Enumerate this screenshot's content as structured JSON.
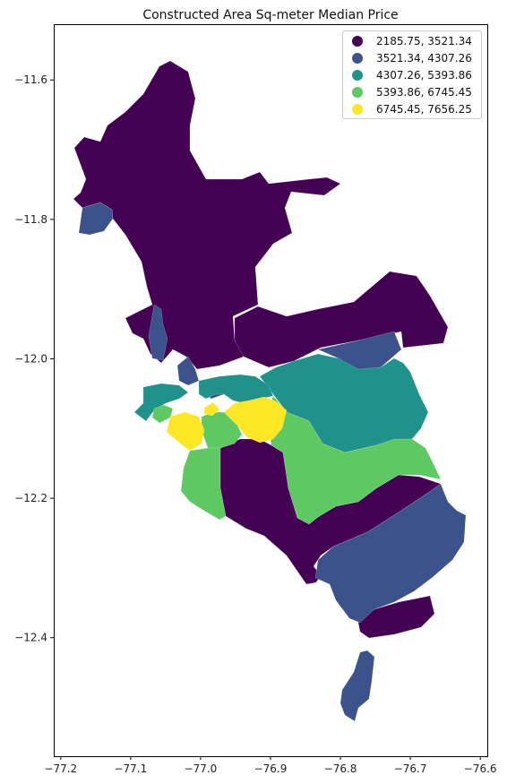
{
  "chart_data": {
    "type": "choropleth",
    "title": "Constructed Area Sq-meter Median Price",
    "xlabel": "",
    "ylabel": "",
    "xlim": [
      -77.21,
      -76.59
    ],
    "ylim": [
      -12.57,
      -11.52
    ],
    "x_ticks": [
      -77.2,
      -77.1,
      -77.0,
      -76.9,
      -76.8,
      -76.7,
      -76.6
    ],
    "x_tick_labels": [
      "−77.2",
      "−77.1",
      "−77.0",
      "−76.9",
      "−76.8",
      "−76.7",
      "−76.6"
    ],
    "y_ticks": [
      -11.6,
      -11.8,
      -12.0,
      -12.2,
      -12.4
    ],
    "y_tick_labels": [
      "−11.6",
      "−11.8",
      "−12.0",
      "−12.2",
      "−12.4"
    ],
    "grid": false,
    "legend": {
      "placement": "top-right",
      "entries": [
        {
          "label": "2185.75, 3521.34",
          "color": "#440154"
        },
        {
          "label": "3521.34, 4307.26",
          "color": "#3b528b"
        },
        {
          "label": "4307.26, 5393.86",
          "color": "#21918c"
        },
        {
          "label": "5393.86, 6745.45",
          "color": "#5ec962"
        },
        {
          "label": "6745.45, 7656.25",
          "color": "#fde725"
        }
      ]
    }
  }
}
